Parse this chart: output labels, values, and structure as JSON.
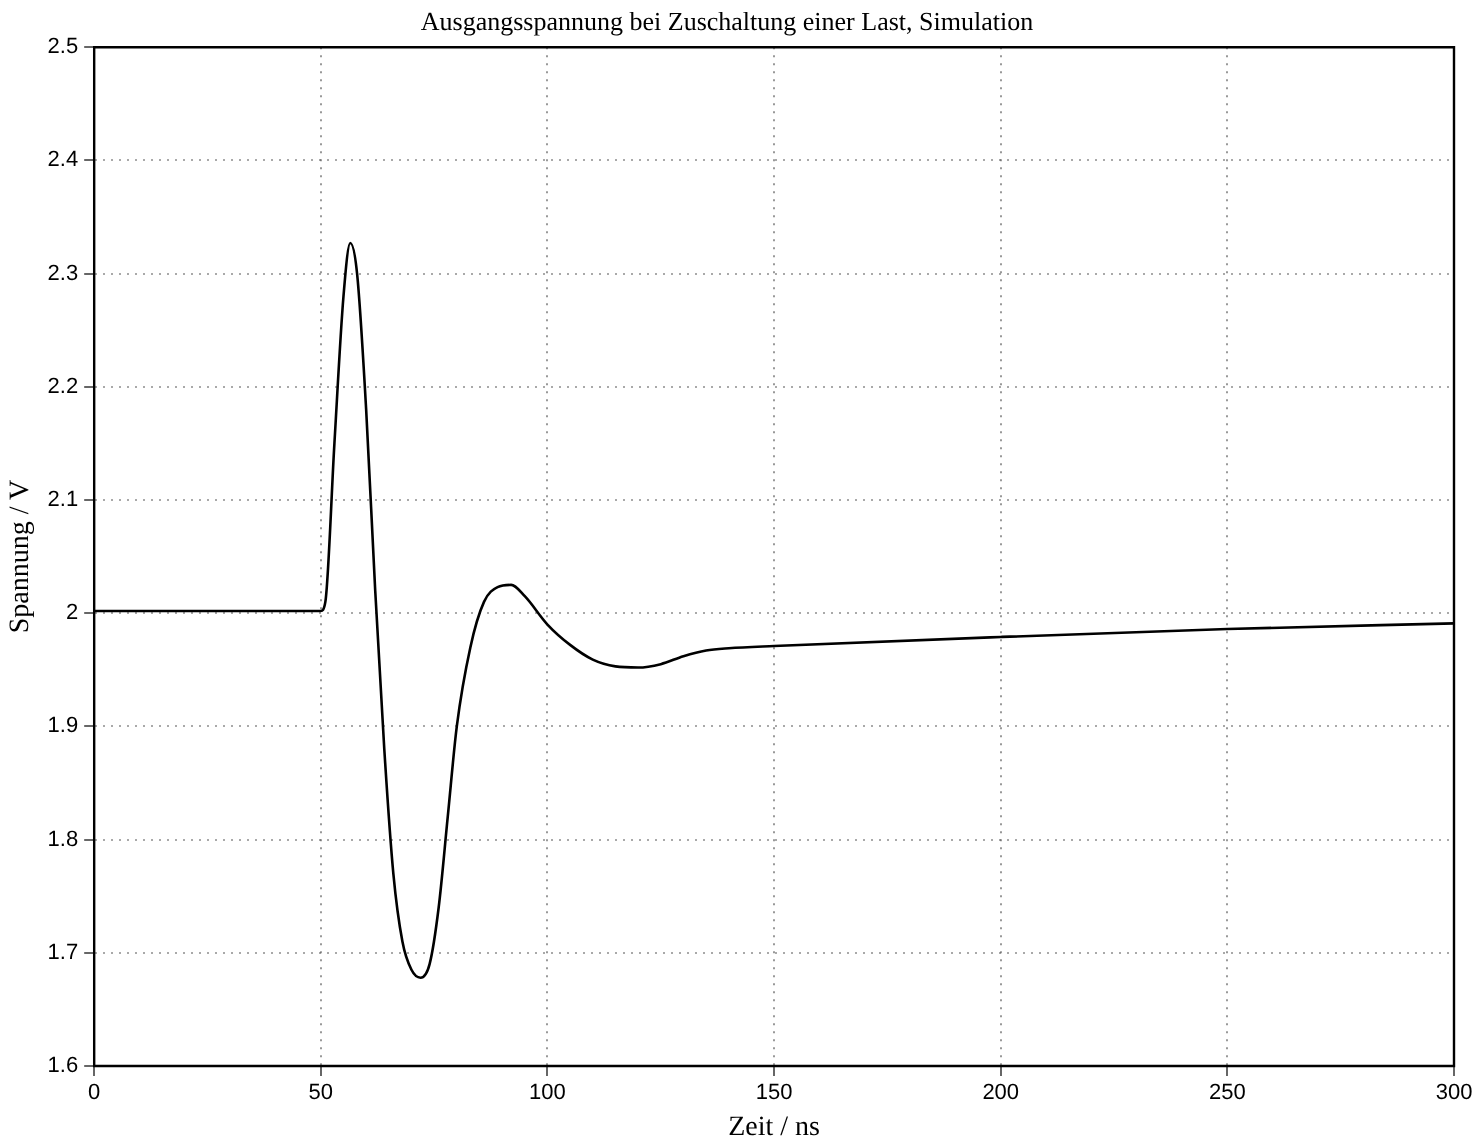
{
  "chart_data": {
    "type": "line",
    "title": "Ausgangsspannung bei Zuschaltung einer Last, Simulation",
    "xlabel": "Zeit / ns",
    "ylabel": "Spannung / V",
    "x": [
      0,
      50,
      51,
      53,
      55,
      56.5,
      58,
      60,
      62,
      64,
      66,
      68,
      70,
      72,
      74,
      76,
      78,
      80,
      83,
      86,
      89,
      92,
      95,
      100,
      105,
      110,
      115,
      120,
      125,
      130,
      135,
      140,
      150,
      200,
      250,
      300
    ],
    "series": [
      {
        "color": "#000000",
        "values": [
          2.002,
          2.002,
          2.01,
          2.15,
          2.28,
          2.327,
          2.3,
          2.18,
          2.02,
          1.88,
          1.77,
          1.71,
          1.685,
          1.678,
          1.69,
          1.74,
          1.82,
          1.9,
          1.97,
          2.01,
          2.023,
          2.025,
          2.015,
          1.99,
          1.972,
          1.959,
          1.953,
          1.952,
          1.955,
          1.962,
          1.967,
          1.969,
          1.971,
          1.979,
          1.986,
          1.991
        ]
      }
    ],
    "xlim": [
      0,
      300
    ],
    "xticks": [
      0,
      50,
      100,
      150,
      200,
      250,
      300
    ],
    "ylim": [
      1.6,
      2.5
    ],
    "yticks": [
      1.6,
      1.7,
      1.8,
      1.9,
      2,
      2.1,
      2.2,
      2.3,
      2.4,
      2.5
    ],
    "grid": true,
    "legend": false,
    "marker": "none",
    "line_style": "solid"
  }
}
